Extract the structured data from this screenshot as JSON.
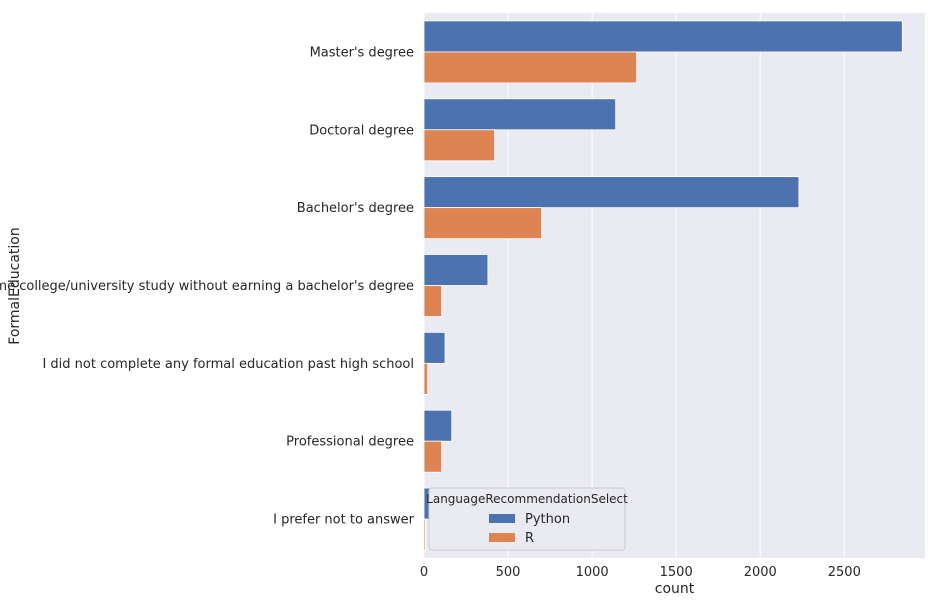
{
  "chart_data": {
    "type": "bar",
    "orientation": "horizontal",
    "xlabel": "count",
    "ylabel": "FormalEducation",
    "xlim": [
      0,
      2980
    ],
    "xticks": [
      0,
      500,
      1000,
      1500,
      2000,
      2500
    ],
    "grid": true,
    "categories": [
      "Master's degree",
      "Doctoral degree",
      "Bachelor's degree",
      "Some college/university study without earning a bachelor's degree",
      "I did not complete any formal education past high school",
      "Professional degree",
      "I prefer not to answer"
    ],
    "legend": {
      "title": "LanguageRecommendationSelect",
      "placement": "lower-center"
    },
    "series": [
      {
        "name": "Python",
        "color": "#4c72b0",
        "values": [
          2845,
          1140,
          2230,
          380,
          125,
          165,
          35
        ]
      },
      {
        "name": "R",
        "color": "#dd8452",
        "values": [
          1265,
          420,
          700,
          105,
          22,
          105,
          8
        ]
      }
    ]
  }
}
